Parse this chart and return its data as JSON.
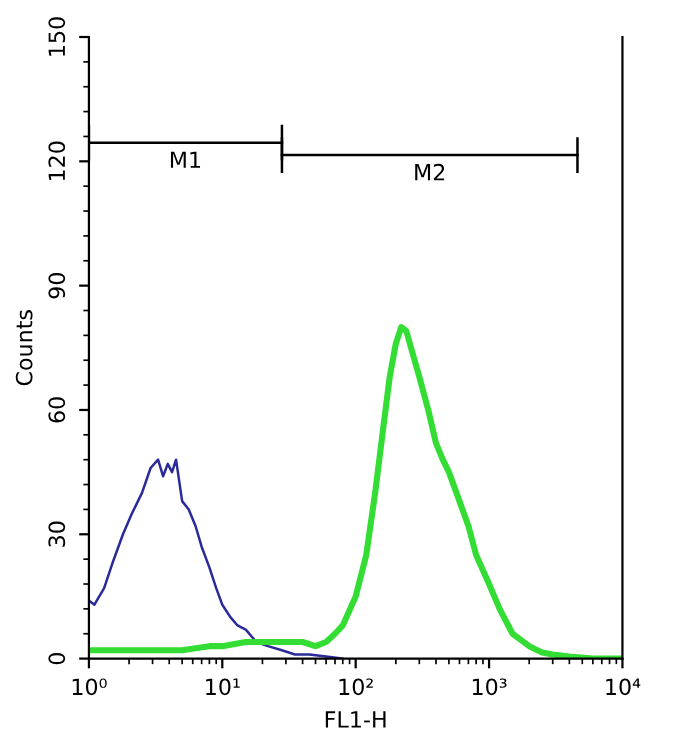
{
  "chart_data": {
    "type": "line",
    "xlabel": "FL1-H",
    "ylabel": "Counts",
    "log": "x",
    "xlim": [
      1,
      10000
    ],
    "ylim": [
      0,
      150
    ],
    "xticks": [
      {
        "value": 1,
        "label": "10⁰"
      },
      {
        "value": 10,
        "label": "10¹"
      },
      {
        "value": 100,
        "label": "10²"
      },
      {
        "value": 1000,
        "label": "10³"
      },
      {
        "value": 10000,
        "label": "10⁴"
      }
    ],
    "yticks": [
      0,
      30,
      60,
      90,
      120,
      150
    ],
    "grid": false,
    "legend": false,
    "series": [
      {
        "name": "M1",
        "color": "#000000",
        "x": [
          1,
          28
        ],
        "values": [
          124.5,
          124.5
        ]
      },
      {
        "name": "M2",
        "color": "#000000",
        "x": [
          28,
          4600
        ],
        "values": [
          121.5,
          121.5
        ]
      },
      {
        "color": "#2a2a9a",
        "x": [
          1,
          1.1,
          1.3,
          1.5,
          1.8,
          2.1,
          2.5,
          2.9,
          3.3,
          3.6,
          3.9,
          4.2,
          4.5,
          5,
          5.6,
          6.3,
          7,
          8,
          9,
          10,
          11.5,
          13,
          15,
          18,
          22,
          28,
          35,
          45,
          60,
          80
        ],
        "values": [
          14,
          13,
          17,
          23,
          30,
          35,
          40,
          46,
          48,
          44,
          47,
          45,
          48,
          38,
          36,
          32,
          27,
          22,
          17,
          13,
          10,
          8,
          7,
          4,
          3,
          2,
          1,
          1,
          0.5,
          0
        ]
      },
      {
        "color": "#33dd33",
        "x": [
          1,
          1.5,
          2,
          3,
          5,
          8,
          10,
          15,
          20,
          30,
          40,
          50,
          60,
          70,
          80,
          100,
          120,
          140,
          160,
          180,
          200,
          220,
          240,
          260,
          300,
          350,
          400,
          450,
          500,
          600,
          700,
          800,
          1000,
          1200,
          1500,
          2000,
          2500,
          3000,
          4000,
          6000,
          10000
        ],
        "values": [
          2,
          2,
          2,
          2,
          2,
          3,
          3,
          4,
          4,
          4,
          4,
          3,
          4,
          6,
          8,
          15,
          25,
          40,
          55,
          68,
          76,
          80,
          79,
          75,
          68,
          60,
          52,
          48,
          45,
          38,
          32,
          25,
          18,
          12,
          6,
          3,
          1.5,
          1,
          0.5,
          0,
          0
        ]
      }
    ]
  }
}
